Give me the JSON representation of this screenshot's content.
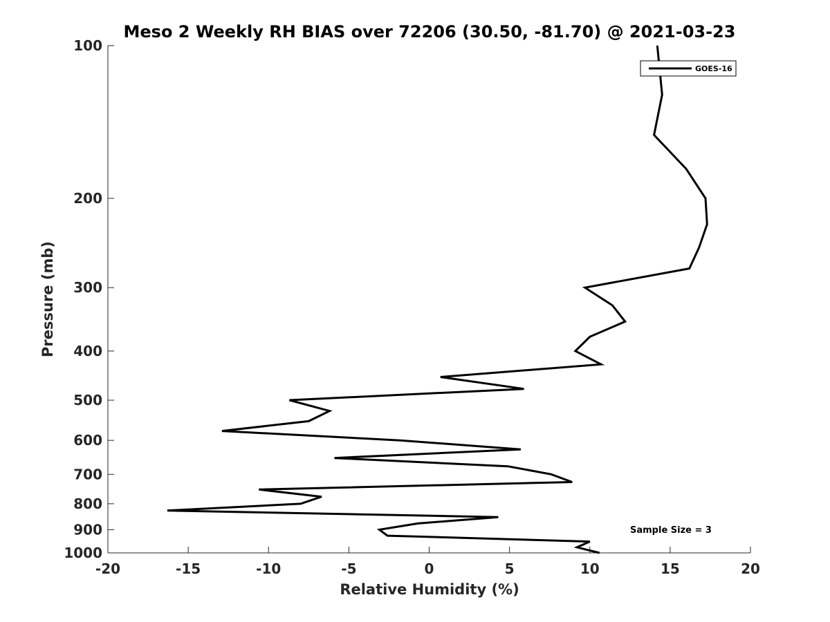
{
  "chart_data": {
    "type": "line",
    "title": "Meso 2 Weekly RH BIAS over 72206 (30.50, -81.70) @ 2021-03-23",
    "xlabel": "Relative Humidity (%)",
    "ylabel": "Pressure (mb)",
    "xlim": [
      -20,
      20
    ],
    "ylim": [
      100,
      1000
    ],
    "y_scale": "log",
    "y_reversed": true,
    "grid": false,
    "legend_placement": "top-right",
    "xticks": [
      "-20",
      "-15",
      "-10",
      "-5",
      "0",
      "5",
      "10",
      "15",
      "20"
    ],
    "yticks": [
      "100",
      "200",
      "300",
      "400",
      "500",
      "600",
      "700",
      "800",
      "900",
      "1000"
    ],
    "annotation": "Sample Size = 3",
    "series": [
      {
        "name": "GOES-16",
        "color": "#000000",
        "points": [
          {
            "x": 14.2,
            "y": 100
          },
          {
            "x": 14.5,
            "y": 125
          },
          {
            "x": 14.0,
            "y": 150
          },
          {
            "x": 16.0,
            "y": 175
          },
          {
            "x": 17.2,
            "y": 200
          },
          {
            "x": 17.3,
            "y": 225
          },
          {
            "x": 16.8,
            "y": 250
          },
          {
            "x": 16.2,
            "y": 275
          },
          {
            "x": 9.7,
            "y": 300
          },
          {
            "x": 11.4,
            "y": 325
          },
          {
            "x": 12.2,
            "y": 350
          },
          {
            "x": 10.0,
            "y": 375
          },
          {
            "x": 9.1,
            "y": 400
          },
          {
            "x": 10.7,
            "y": 425
          },
          {
            "x": 0.7,
            "y": 450
          },
          {
            "x": 5.9,
            "y": 475
          },
          {
            "x": -8.7,
            "y": 500
          },
          {
            "x": -6.2,
            "y": 525
          },
          {
            "x": -7.5,
            "y": 550
          },
          {
            "x": -12.9,
            "y": 575
          },
          {
            "x": -1.8,
            "y": 600
          },
          {
            "x": 5.7,
            "y": 625
          },
          {
            "x": -5.9,
            "y": 650
          },
          {
            "x": 4.9,
            "y": 675
          },
          {
            "x": 7.6,
            "y": 700
          },
          {
            "x": 8.9,
            "y": 725
          },
          {
            "x": -10.6,
            "y": 750
          },
          {
            "x": -6.7,
            "y": 775
          },
          {
            "x": -8.0,
            "y": 800
          },
          {
            "x": -16.3,
            "y": 825
          },
          {
            "x": 4.3,
            "y": 850
          },
          {
            "x": -0.7,
            "y": 875
          },
          {
            "x": -3.1,
            "y": 900
          },
          {
            "x": -2.6,
            "y": 925
          },
          {
            "x": 10.0,
            "y": 950
          },
          {
            "x": 9.2,
            "y": 975
          },
          {
            "x": 10.6,
            "y": 1000
          }
        ]
      }
    ]
  }
}
